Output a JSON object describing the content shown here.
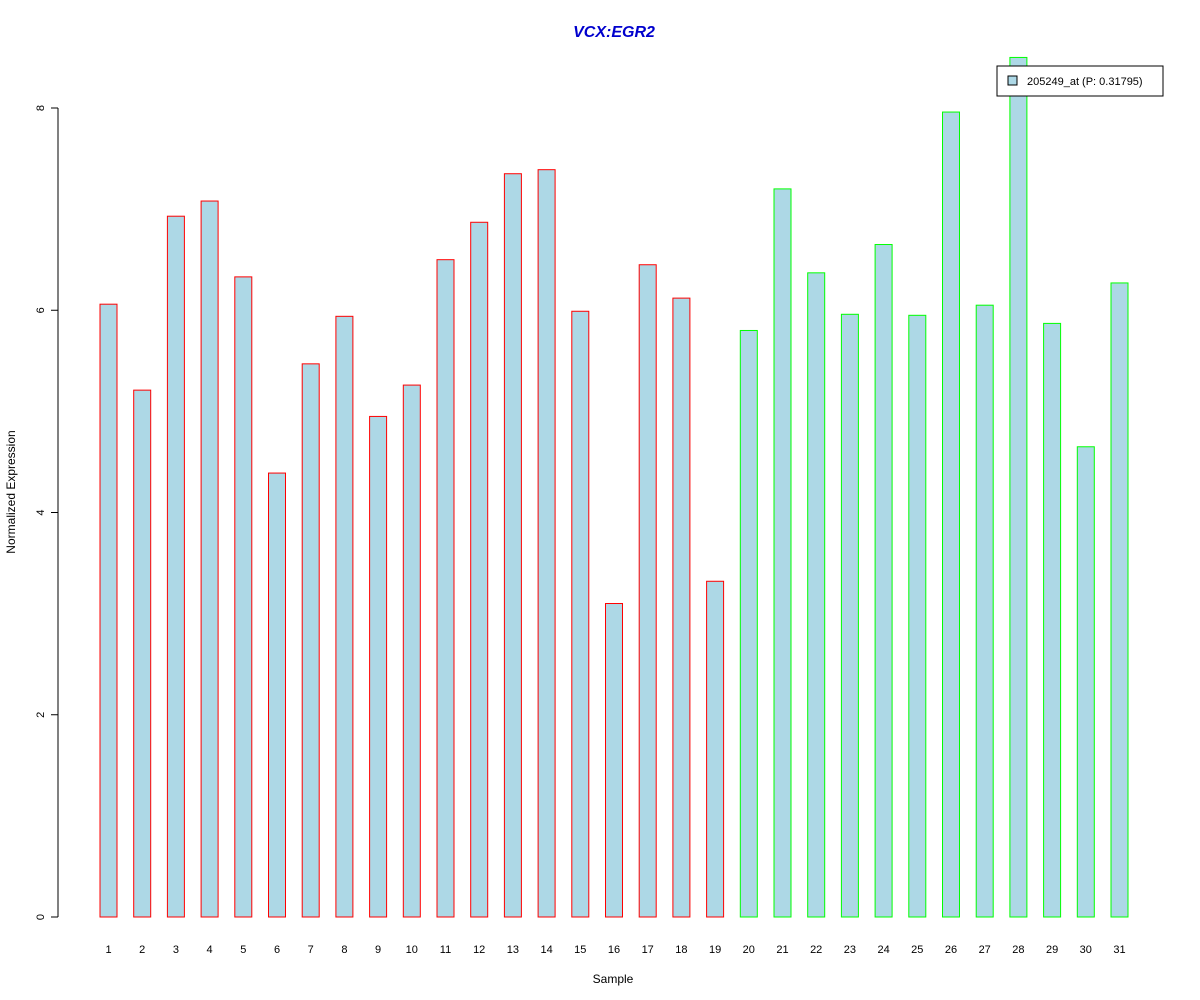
{
  "chart_data": {
    "type": "bar",
    "title": "VCX:EGR2",
    "xlabel": "Sample",
    "ylabel": "Normalized Expression",
    "categories": [
      "1",
      "2",
      "3",
      "4",
      "5",
      "6",
      "7",
      "8",
      "9",
      "10",
      "11",
      "12",
      "13",
      "14",
      "15",
      "16",
      "17",
      "18",
      "19",
      "20",
      "21",
      "22",
      "23",
      "24",
      "25",
      "26",
      "27",
      "28",
      "29",
      "30",
      "31"
    ],
    "series": [
      {
        "name": "205249_at (P: 0.31795)",
        "values": [
          6.06,
          5.21,
          6.93,
          7.08,
          6.33,
          4.39,
          5.47,
          5.94,
          4.95,
          5.26,
          6.5,
          6.87,
          7.35,
          7.39,
          5.99,
          3.1,
          6.45,
          6.12,
          3.32,
          5.8,
          7.2,
          6.37,
          5.96,
          6.65,
          5.95,
          7.96,
          6.05,
          8.5,
          5.87,
          4.65,
          6.27
        ]
      }
    ],
    "group_sizes": [
      19,
      12
    ],
    "ylim": [
      0,
      8
    ],
    "yticks": [
      "0",
      "2",
      "4",
      "6",
      "8"
    ],
    "legend_position": "top-right",
    "colors": {
      "bar_fill": "#add8e6",
      "group1_border": "#ff0000",
      "group2_border": "#00ff00",
      "title": "#0000cd"
    }
  }
}
